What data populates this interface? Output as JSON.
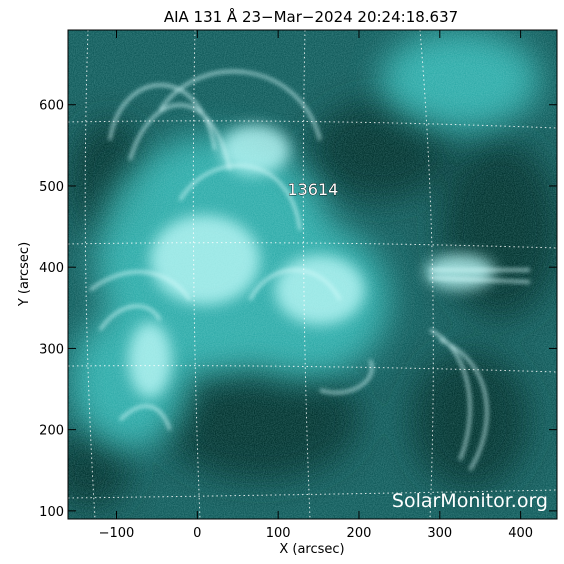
{
  "title": "AIA 131 Å 23−Mar−2024  20:24:18.637",
  "x_axis": {
    "label": "X (arcsec)",
    "range": [
      -160,
      445
    ],
    "ticks": [
      -100,
      0,
      100,
      200,
      300,
      400
    ],
    "tick_labels": [
      "−100",
      "0",
      "100",
      "200",
      "300",
      "400"
    ]
  },
  "y_axis": {
    "label": "Y (arcsec)",
    "range": [
      90,
      692
    ],
    "ticks": [
      100,
      200,
      300,
      400,
      500,
      600
    ],
    "tick_labels": [
      "100",
      "200",
      "300",
      "400",
      "500",
      "600"
    ]
  },
  "region_label": {
    "text": "13614",
    "x": 143,
    "y": 496
  },
  "watermark": "SolarMonitor.org",
  "colors": {
    "image_base": "#0f5959",
    "bright": "#d8fbfb",
    "dark": "#04302f",
    "grid": "#ffffff"
  }
}
